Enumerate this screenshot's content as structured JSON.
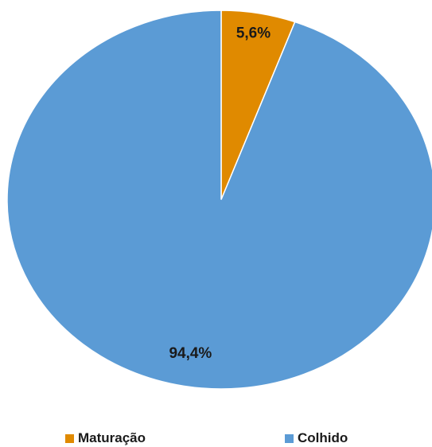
{
  "chart_data": {
    "type": "pie",
    "title": "",
    "start_angle_deg": 0,
    "direction": "clockwise",
    "slices": [
      {
        "name": "Maturação",
        "value": 5.6,
        "label": "5,6%",
        "color": "#E08A00"
      },
      {
        "name": "Colhido",
        "value": 94.4,
        "label": "94,4%",
        "color": "#5B9BD5"
      }
    ],
    "legend": {
      "position": "bottom",
      "items": [
        {
          "label": "Maturação",
          "color": "#E08A00"
        },
        {
          "label": "Colhido",
          "color": "#5B9BD5"
        }
      ]
    }
  }
}
